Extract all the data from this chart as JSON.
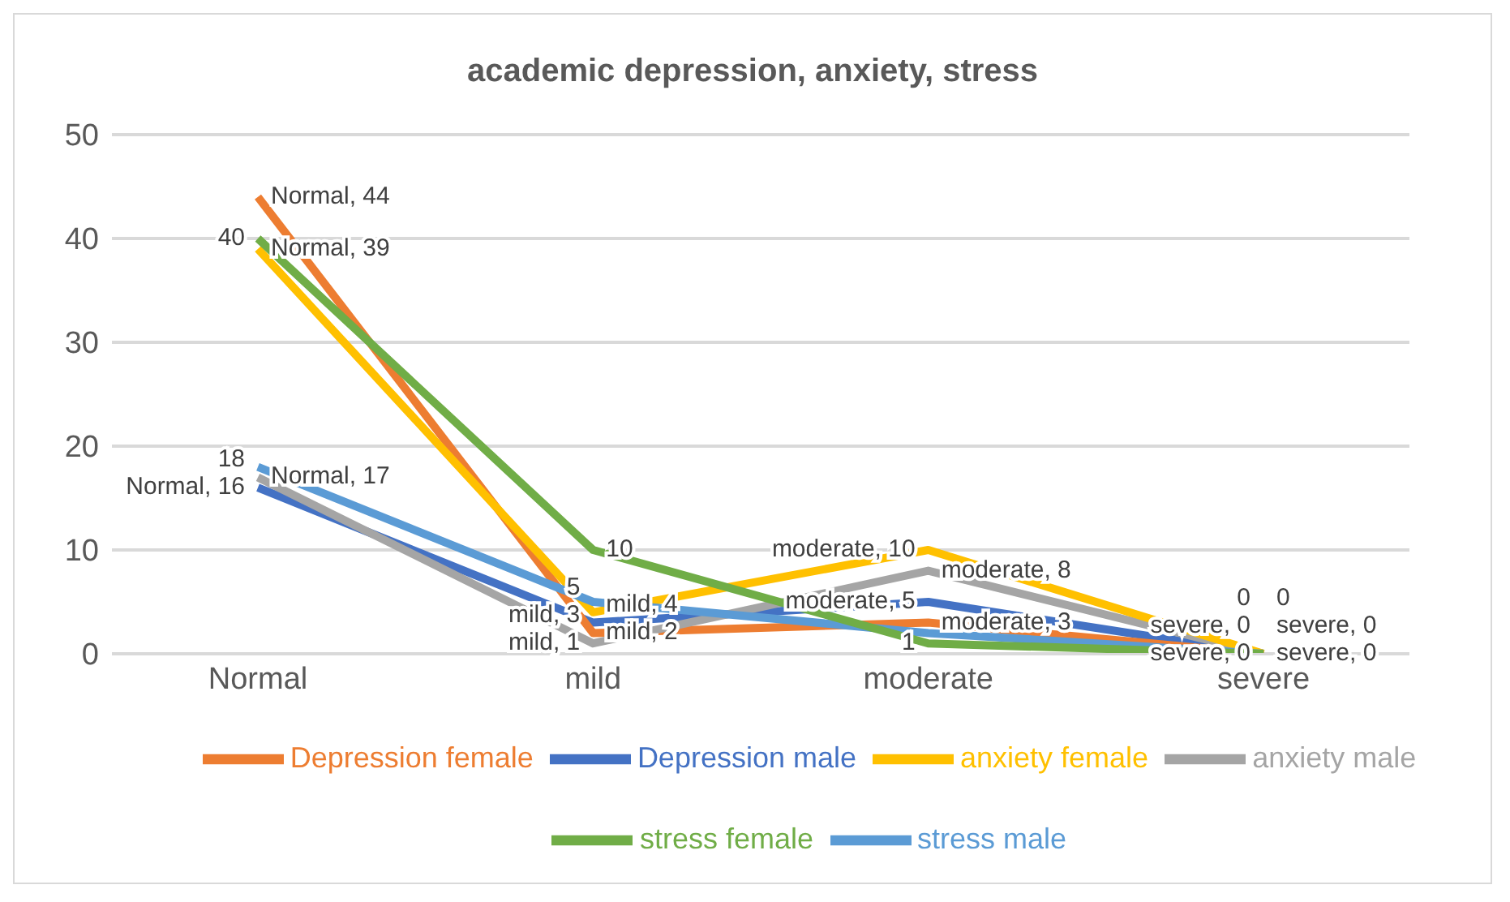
{
  "chart_data": {
    "type": "line",
    "title": "academic depression, anxiety, stress",
    "categories": [
      "Normal",
      "mild",
      "moderate",
      "severe"
    ],
    "series": [
      {
        "name": "Depression male",
        "color": "#4472c4",
        "values": [
          16,
          3,
          5,
          0
        ],
        "value_labels": [
          "Normal, 16",
          "mild, 3",
          "moderate, 5",
          "severe, 0"
        ]
      },
      {
        "name": "Depression female",
        "color": "#ed7d31",
        "values": [
          44,
          2,
          3,
          0
        ],
        "value_labels": [
          "Normal, 44",
          "mild, 2",
          "moderate, 3",
          "severe, 0"
        ]
      },
      {
        "name": "anxiety male",
        "color": "#a5a5a5",
        "values": [
          17,
          1,
          8,
          0
        ],
        "value_labels": [
          "Normal, 17",
          "mild, 1",
          "moderate, 8",
          "severe, 0"
        ]
      },
      {
        "name": "anxiety female",
        "color": "#ffc000",
        "values": [
          39,
          4,
          10,
          0
        ],
        "value_labels": [
          "Normal, 39",
          "mild, 4",
          "moderate, 10",
          "severe, 0"
        ]
      },
      {
        "name": "stress male",
        "color": "#5b9bd5",
        "values": [
          18,
          5,
          2,
          0
        ],
        "value_labels": [
          "18",
          "5",
          null,
          "0"
        ]
      },
      {
        "name": "stress female",
        "color": "#70ad47",
        "values": [
          40,
          10,
          1,
          0
        ],
        "value_labels": [
          "40",
          "10",
          "1",
          "0"
        ]
      }
    ],
    "ylim": [
      0,
      50
    ],
    "yticks": [
      0,
      10,
      20,
      30,
      40,
      50
    ],
    "grid": "y",
    "legend": "bottom",
    "marker": "none",
    "line_style": "solid"
  }
}
